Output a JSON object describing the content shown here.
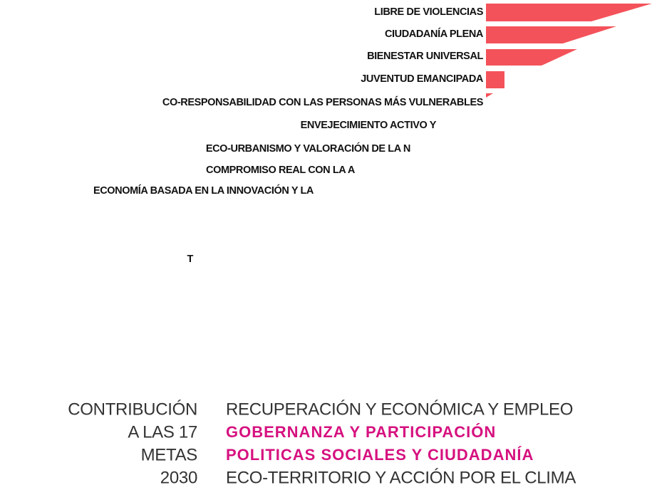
{
  "labels": [
    "LIBRE DE VIOLENCIAS",
    "CIUDADANÍA PLENA",
    "BIENESTAR UNIVERSAL",
    "JUVENTUD EMANCIPADA",
    "CO-RESPONSABILIDAD CON LAS PERSONAS MÁS VULNERABLES",
    "ENVEJECIMIENTO ACTIVO Y",
    "ECO-URBANISMO Y VALORACIÓN DE LA N",
    "COMPROMISO REAL CON LA A",
    "ECONOMÍA BASADA EN LA INNOVACIÓN Y LA"
  ],
  "footer_letter": "T",
  "contribution": {
    "lines": [
      "CONTRIBUCIÓN",
      "A LAS 17",
      "METAS",
      "2030"
    ]
  },
  "legend": {
    "items": [
      {
        "text": "RECUPERACIÓN Y ECONÓMICA Y EMPLEO",
        "color": "#333333",
        "bold": false
      },
      {
        "text": "GOBERNANZA Y PARTICIPACIÓN",
        "color": "#d6117f",
        "bold": true
      },
      {
        "text": "POLITICAS SOCIALES Y CIUDADANÍA",
        "color": "#d6117f",
        "bold": true
      },
      {
        "text": "ECO-TERRITORIO Y ACCIÓN POR EL CLIMA",
        "color": "#333333",
        "bold": false
      }
    ]
  }
}
